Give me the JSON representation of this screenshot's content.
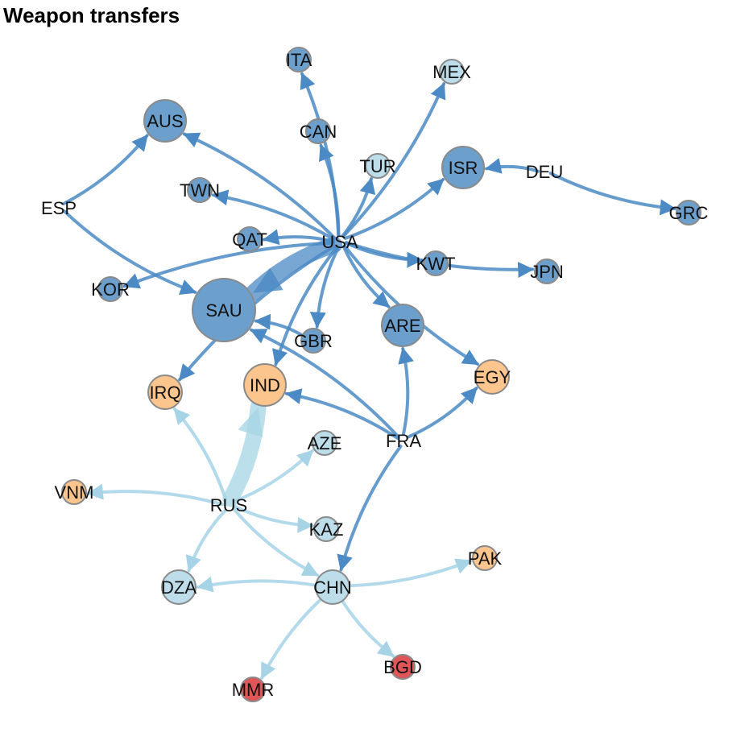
{
  "title": "Weapon transfers",
  "colors": {
    "exporter_dark": "#6c9fcc",
    "exporter_light": "#bcdde9",
    "orange": "#fdc58e",
    "red": "#e05658",
    "edge_dark": "#4b8ac4",
    "edge_light": "#a6d4e6",
    "node_stroke": "#8a8a8a"
  },
  "nodes": [
    {
      "id": "USA",
      "label": "USA",
      "group": "dark",
      "size": "small",
      "bubble": false
    },
    {
      "id": "SAU",
      "label": "SAU",
      "group": "dark",
      "size": "xlarge",
      "bubble": true
    },
    {
      "id": "AUS",
      "label": "AUS",
      "group": "dark",
      "size": "large",
      "bubble": true
    },
    {
      "id": "ISR",
      "label": "ISR",
      "group": "dark",
      "size": "large",
      "bubble": true
    },
    {
      "id": "ARE",
      "label": "ARE",
      "group": "dark",
      "size": "large",
      "bubble": true
    },
    {
      "id": "ITA",
      "label": "ITA",
      "group": "dark",
      "size": "small",
      "bubble": true
    },
    {
      "id": "MEX",
      "label": "MEX",
      "group": "light",
      "size": "small",
      "bubble": true
    },
    {
      "id": "CAN",
      "label": "CAN",
      "group": "dark",
      "size": "small",
      "bubble": true
    },
    {
      "id": "TUR",
      "label": "TUR",
      "group": "light",
      "size": "small",
      "bubble": true
    },
    {
      "id": "DEU",
      "label": "DEU",
      "group": "dark",
      "size": "none",
      "bubble": false
    },
    {
      "id": "GRC",
      "label": "GRC",
      "group": "dark",
      "size": "small",
      "bubble": true
    },
    {
      "id": "TWN",
      "label": "TWN",
      "group": "dark",
      "size": "small",
      "bubble": true
    },
    {
      "id": "ESP",
      "label": "ESP",
      "group": "dark",
      "size": "none",
      "bubble": false
    },
    {
      "id": "QAT",
      "label": "QAT",
      "group": "dark",
      "size": "small",
      "bubble": true
    },
    {
      "id": "KWT",
      "label": "KWT",
      "group": "dark",
      "size": "small",
      "bubble": true
    },
    {
      "id": "JPN",
      "label": "JPN",
      "group": "dark",
      "size": "small",
      "bubble": true
    },
    {
      "id": "KOR",
      "label": "KOR",
      "group": "dark",
      "size": "small",
      "bubble": true
    },
    {
      "id": "GBR",
      "label": "GBR",
      "group": "dark",
      "size": "small",
      "bubble": true
    },
    {
      "id": "IRQ",
      "label": "IRQ",
      "group": "orange",
      "size": "medium",
      "bubble": true
    },
    {
      "id": "IND",
      "label": "IND",
      "group": "orange",
      "size": "large",
      "bubble": true
    },
    {
      "id": "EGY",
      "label": "EGY",
      "group": "orange",
      "size": "medium",
      "bubble": true
    },
    {
      "id": "AZE",
      "label": "AZE",
      "group": "light",
      "size": "small",
      "bubble": true
    },
    {
      "id": "FRA",
      "label": "FRA",
      "group": "dark",
      "size": "none",
      "bubble": false
    },
    {
      "id": "VNM",
      "label": "VNM",
      "group": "orange",
      "size": "small",
      "bubble": true
    },
    {
      "id": "RUS",
      "label": "RUS",
      "group": "light",
      "size": "none",
      "bubble": false
    },
    {
      "id": "KAZ",
      "label": "KAZ",
      "group": "light",
      "size": "small",
      "bubble": true
    },
    {
      "id": "PAK",
      "label": "PAK",
      "group": "orange",
      "size": "small",
      "bubble": true
    },
    {
      "id": "DZA",
      "label": "DZA",
      "group": "light",
      "size": "medium",
      "bubble": true
    },
    {
      "id": "CHN",
      "label": "CHN",
      "group": "light",
      "size": "medium",
      "bubble": true
    },
    {
      "id": "BGD",
      "label": "BGD",
      "group": "red",
      "size": "small",
      "bubble": true
    },
    {
      "id": "MMR",
      "label": "MMR",
      "group": "red",
      "size": "small",
      "bubble": true
    }
  ],
  "edges": [
    {
      "from": "USA",
      "to": "SAU",
      "weight": "heavy",
      "tone": "dark"
    },
    {
      "from": "USA",
      "to": "AUS",
      "weight": "normal",
      "tone": "dark"
    },
    {
      "from": "USA",
      "to": "ITA",
      "weight": "normal",
      "tone": "dark"
    },
    {
      "from": "USA",
      "to": "MEX",
      "weight": "normal",
      "tone": "dark"
    },
    {
      "from": "USA",
      "to": "CAN",
      "weight": "normal",
      "tone": "dark"
    },
    {
      "from": "USA",
      "to": "TUR",
      "weight": "normal",
      "tone": "dark"
    },
    {
      "from": "USA",
      "to": "ISR",
      "weight": "normal",
      "tone": "dark"
    },
    {
      "from": "USA",
      "to": "TWN",
      "weight": "normal",
      "tone": "dark"
    },
    {
      "from": "USA",
      "to": "QAT",
      "weight": "normal",
      "tone": "dark"
    },
    {
      "from": "USA",
      "to": "KWT",
      "weight": "normal",
      "tone": "dark"
    },
    {
      "from": "USA",
      "to": "JPN",
      "weight": "normal",
      "tone": "dark"
    },
    {
      "from": "USA",
      "to": "KOR",
      "weight": "normal",
      "tone": "dark"
    },
    {
      "from": "USA",
      "to": "ARE",
      "weight": "normal",
      "tone": "dark"
    },
    {
      "from": "USA",
      "to": "EGY",
      "weight": "normal",
      "tone": "dark"
    },
    {
      "from": "USA",
      "to": "GBR",
      "weight": "normal",
      "tone": "dark"
    },
    {
      "from": "USA",
      "to": "IND",
      "weight": "normal",
      "tone": "dark"
    },
    {
      "from": "USA",
      "to": "IRQ",
      "weight": "normal",
      "tone": "dark"
    },
    {
      "from": "DEU",
      "to": "ISR",
      "weight": "normal",
      "tone": "dark"
    },
    {
      "from": "DEU",
      "to": "GRC",
      "weight": "normal",
      "tone": "dark"
    },
    {
      "from": "ESP",
      "to": "AUS",
      "weight": "normal",
      "tone": "dark"
    },
    {
      "from": "ESP",
      "to": "SAU",
      "weight": "normal",
      "tone": "dark"
    },
    {
      "from": "GBR",
      "to": "SAU",
      "weight": "normal",
      "tone": "dark"
    },
    {
      "from": "FRA",
      "to": "SAU",
      "weight": "normal",
      "tone": "dark"
    },
    {
      "from": "FRA",
      "to": "IND",
      "weight": "normal",
      "tone": "dark"
    },
    {
      "from": "FRA",
      "to": "ARE",
      "weight": "normal",
      "tone": "dark"
    },
    {
      "from": "FRA",
      "to": "EGY",
      "weight": "normal",
      "tone": "dark"
    },
    {
      "from": "FRA",
      "to": "CHN",
      "weight": "normal",
      "tone": "dark"
    },
    {
      "from": "RUS",
      "to": "IND",
      "weight": "heavy",
      "tone": "light"
    },
    {
      "from": "RUS",
      "to": "IRQ",
      "weight": "normal",
      "tone": "light"
    },
    {
      "from": "RUS",
      "to": "VNM",
      "weight": "normal",
      "tone": "light"
    },
    {
      "from": "RUS",
      "to": "AZE",
      "weight": "normal",
      "tone": "light"
    },
    {
      "from": "RUS",
      "to": "KAZ",
      "weight": "normal",
      "tone": "light"
    },
    {
      "from": "RUS",
      "to": "DZA",
      "weight": "normal",
      "tone": "light"
    },
    {
      "from": "RUS",
      "to": "CHN",
      "weight": "normal",
      "tone": "light"
    },
    {
      "from": "CHN",
      "to": "DZA",
      "weight": "normal",
      "tone": "light"
    },
    {
      "from": "CHN",
      "to": "PAK",
      "weight": "normal",
      "tone": "light"
    },
    {
      "from": "CHN",
      "to": "BGD",
      "weight": "normal",
      "tone": "light"
    },
    {
      "from": "CHN",
      "to": "MMR",
      "weight": "normal",
      "tone": "light"
    }
  ]
}
